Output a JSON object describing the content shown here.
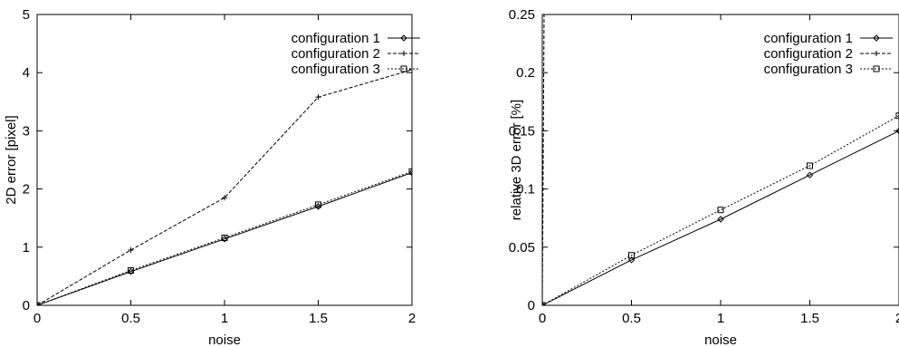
{
  "chart_data": [
    {
      "type": "line",
      "xlabel": "noise",
      "ylabel": "2D error [pixel]",
      "xlim": [
        0,
        2
      ],
      "ylim": [
        0,
        5
      ],
      "xticks": [
        "0",
        "0.5",
        "1",
        "1.5",
        "2"
      ],
      "yticks": [
        "0",
        "1",
        "2",
        "3",
        "4",
        "5"
      ],
      "grid": false,
      "legend": "top-right",
      "series": [
        {
          "name": "configuration 1",
          "style": "solid",
          "marker": "diamond",
          "x": [
            0,
            0.5,
            1,
            1.5,
            2
          ],
          "y": [
            0,
            0.58,
            1.14,
            1.7,
            2.28
          ]
        },
        {
          "name": "configuration 2",
          "style": "dashed",
          "marker": "plus",
          "x": [
            0,
            0.5,
            1,
            1.5,
            2
          ],
          "y": [
            0,
            0.95,
            1.85,
            3.58,
            4.05
          ]
        },
        {
          "name": "configuration 3",
          "style": "dotted",
          "marker": "square",
          "x": [
            0,
            0.5,
            1,
            1.5,
            2
          ],
          "y": [
            0,
            0.6,
            1.16,
            1.73,
            2.3
          ]
        }
      ]
    },
    {
      "type": "line",
      "xlabel": "noise",
      "ylabel": "relative 3D error [%]",
      "xlim": [
        0,
        2
      ],
      "ylim": [
        0,
        0.25
      ],
      "xticks": [
        "0",
        "0.5",
        "1",
        "1.5",
        "2"
      ],
      "yticks": [
        "0",
        "0.05",
        "0.1",
        "0.15",
        "0.2",
        "0.25"
      ],
      "grid": false,
      "legend": "top-right",
      "series": [
        {
          "name": "configuration 1",
          "style": "solid",
          "marker": "diamond",
          "x": [
            0,
            0.5,
            1,
            1.5,
            2
          ],
          "y": [
            0,
            0.039,
            0.074,
            0.112,
            0.15
          ]
        },
        {
          "name": "configuration 2",
          "style": "dashed",
          "marker": "plus",
          "x": [
            0,
            0.01
          ],
          "y": [
            0,
            0.25
          ]
        },
        {
          "name": "configuration 3",
          "style": "dotted",
          "marker": "square",
          "x": [
            0,
            0.5,
            1,
            1.5,
            2
          ],
          "y": [
            0,
            0.043,
            0.082,
            0.12,
            0.163
          ]
        }
      ]
    }
  ]
}
